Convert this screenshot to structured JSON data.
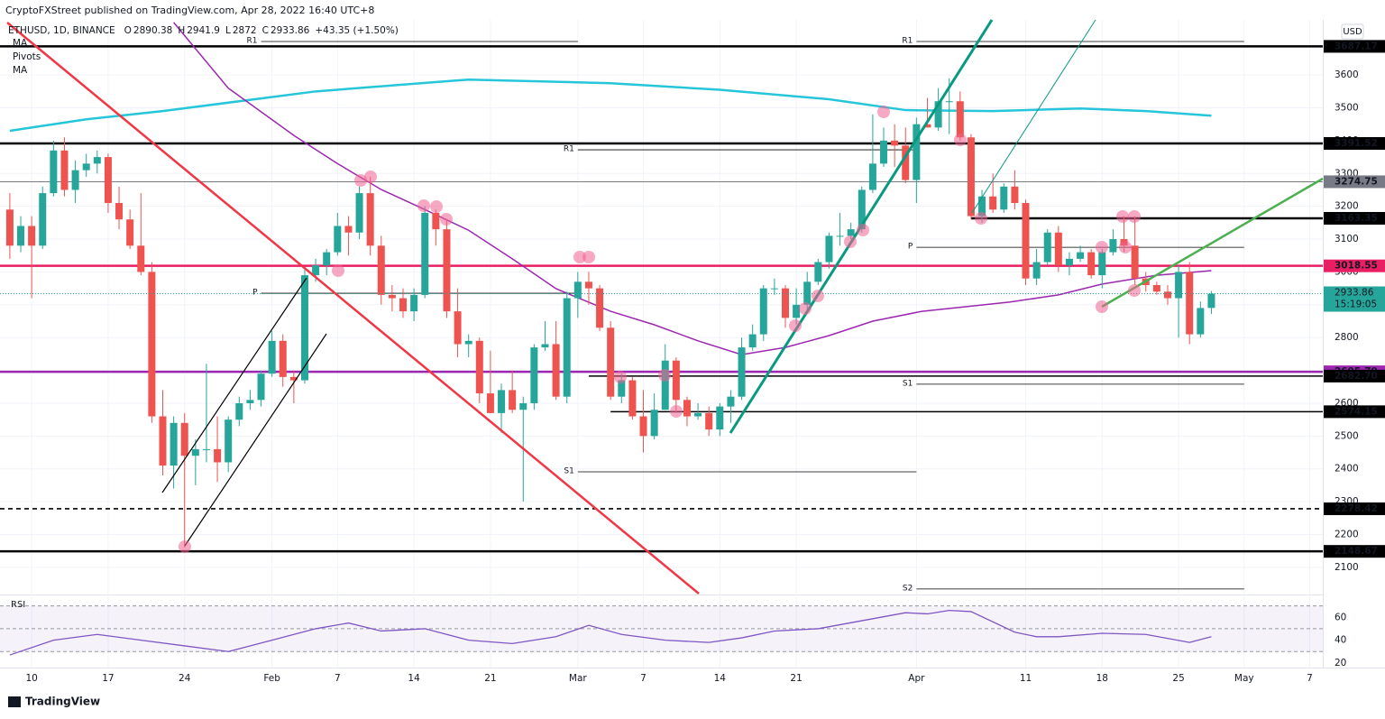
{
  "header": {
    "publisher": "CryptoFXStreet published on TradingView.com, Apr 28, 2022 16:40 UTC+8",
    "symbol": "ETHUSD, 1D, BINANCE",
    "o": "O",
    "h": "H",
    "l": "L",
    "c": "C",
    "change": "+43.35 (+1.50%)",
    "indicators": [
      "MA",
      "Pivots",
      "MA"
    ],
    "currency": "USD",
    "rsi": "RSI",
    "countdown": "15:19:05",
    "footer": "TradingView"
  },
  "chart_data": {
    "type": "candlestick",
    "xlim": [
      -0.9,
      120.2
    ],
    "ylim": [
      2020,
      3768
    ],
    "grid": true,
    "xticks": [
      {
        "value": 2,
        "label": "10"
      },
      {
        "value": 9,
        "label": "17"
      },
      {
        "value": 16,
        "label": "24"
      },
      {
        "value": 24,
        "label": "Feb"
      },
      {
        "value": 30,
        "label": "7"
      },
      {
        "value": 37,
        "label": "14"
      },
      {
        "value": 44,
        "label": "21"
      },
      {
        "value": 52,
        "label": "Mar"
      },
      {
        "value": 58,
        "label": "7"
      },
      {
        "value": 65,
        "label": "14"
      },
      {
        "value": 72,
        "label": "21"
      },
      {
        "value": 83,
        "label": "Apr"
      },
      {
        "value": 93,
        "label": "11"
      },
      {
        "value": 100,
        "label": "18"
      },
      {
        "value": 107,
        "label": "25"
      },
      {
        "value": 113,
        "label": "May"
      },
      {
        "value": 119,
        "label": "7"
      }
    ],
    "yticks": [
      2100,
      2200,
      2300,
      2400,
      2500,
      2600,
      2700,
      2800,
      2900,
      3000,
      3100,
      3200,
      3300,
      3400,
      3500,
      3600
    ],
    "candles": {
      "o": [
        3190,
        3080,
        3140,
        3080,
        3240,
        3370,
        3250,
        3310,
        3330,
        3350,
        3210,
        3160,
        3080,
        3000,
        2560,
        2410,
        2540,
        2440,
        2460,
        2460,
        2420,
        2550,
        2600,
        2610,
        2690,
        2790,
        2680,
        2670,
        2990,
        3020,
        3060,
        3140,
        3120,
        3240,
        3080,
        2930,
        2920,
        2880,
        2930,
        3180,
        3130,
        2880,
        2780,
        2790,
        2630,
        2570,
        2640,
        2580,
        2600,
        2770,
        2780,
        2620,
        2920,
        2970,
        2950,
        2830,
        2620,
        2670,
        2560,
        2500,
        2580,
        2730,
        2610,
        2560,
        2570,
        2520,
        2590,
        2620,
        2770,
        2810,
        2950,
        2950,
        2860,
        2900,
        2970,
        3030,
        3110,
        3110,
        3130,
        3250,
        3330,
        3400,
        3385,
        3280,
        3450,
        3440,
        3520,
        3520,
        3410,
        3170,
        3230,
        3190,
        3260,
        3210,
        2980,
        3030,
        3120,
        3020,
        3040,
        3060,
        2990,
        3060,
        3100,
        3080,
        2980,
        2960,
        2940,
        2920,
        3000,
        2810,
        2890.38
      ],
      "h": [
        3240,
        3170,
        3170,
        3260,
        3400,
        3410,
        3340,
        3360,
        3370,
        3360,
        3260,
        3190,
        3240,
        3030,
        2640,
        2560,
        2570,
        2490,
        2720,
        2560,
        2560,
        2620,
        2640,
        2700,
        2820,
        2810,
        2700,
        3010,
        3040,
        3070,
        3180,
        3170,
        3260,
        3290,
        3110,
        2960,
        2950,
        2950,
        3200,
        3190,
        3160,
        2950,
        2810,
        2800,
        2760,
        2660,
        2700,
        2620,
        2780,
        2850,
        2850,
        2940,
        3000,
        3000,
        2960,
        2850,
        2690,
        2680,
        2640,
        2630,
        2780,
        2740,
        2620,
        2600,
        2590,
        2600,
        2640,
        2800,
        2840,
        2960,
        2980,
        2960,
        2950,
        3000,
        3040,
        3120,
        3180,
        3150,
        3260,
        3480,
        3440,
        3450,
        3440,
        3470,
        3530,
        3560,
        3590,
        3550,
        3420,
        3250,
        3300,
        3270,
        3310,
        3220,
        3070,
        3130,
        3140,
        3060,
        3080,
        3070,
        3070,
        3130,
        3170,
        3170,
        3000,
        2970,
        2960,
        3020,
        3030,
        2910,
        2941.9
      ],
      "l": [
        3040,
        3060,
        2920,
        3070,
        3230,
        3230,
        3210,
        3290,
        3300,
        3180,
        3130,
        3070,
        2990,
        2540,
        2380,
        2340,
        2160,
        2350,
        2420,
        2360,
        2390,
        2530,
        2580,
        2590,
        2680,
        2650,
        2600,
        2660,
        2970,
        2990,
        3050,
        3050,
        3100,
        3050,
        2900,
        2880,
        2860,
        2850,
        2920,
        3080,
        2860,
        2740,
        2740,
        2600,
        2570,
        2510,
        2570,
        2300,
        2580,
        2760,
        2610,
        2600,
        2860,
        2900,
        2820,
        2610,
        2600,
        2550,
        2450,
        2490,
        2580,
        2570,
        2530,
        2550,
        2500,
        2500,
        2540,
        2610,
        2760,
        2790,
        2930,
        2830,
        2840,
        2880,
        2960,
        3010,
        3080,
        3100,
        3120,
        3240,
        3320,
        3320,
        3270,
        3210,
        3440,
        3430,
        3420,
        3400,
        3160,
        3150,
        3180,
        3180,
        3190,
        2960,
        2960,
        3020,
        3000,
        2990,
        3030,
        2980,
        2950,
        3050,
        3060,
        2960,
        2940,
        2930,
        2900,
        2800,
        2780,
        2800,
        2872.0
      ],
      "c": [
        3080,
        3140,
        3080,
        3240,
        3370,
        3250,
        3310,
        3330,
        3350,
        3210,
        3160,
        3080,
        3000,
        2560,
        2410,
        2540,
        2440,
        2460,
        2460,
        2420,
        2550,
        2600,
        2610,
        2690,
        2790,
        2680,
        2670,
        2990,
        3020,
        3060,
        3140,
        3120,
        3240,
        3080,
        2930,
        2920,
        2880,
        2930,
        3180,
        3130,
        2880,
        2780,
        2790,
        2630,
        2570,
        2640,
        2580,
        2600,
        2770,
        2780,
        2620,
        2920,
        2970,
        2950,
        2830,
        2620,
        2670,
        2560,
        2500,
        2580,
        2730,
        2610,
        2560,
        2570,
        2520,
        2590,
        2620,
        2770,
        2810,
        2950,
        2950,
        2860,
        2900,
        2970,
        3030,
        3110,
        3110,
        3130,
        3250,
        3330,
        3400,
        3385,
        3280,
        3450,
        3440,
        3520,
        3520,
        3410,
        3170,
        3230,
        3190,
        3260,
        3210,
        2980,
        3030,
        3120,
        3020,
        3040,
        3060,
        2990,
        3060,
        3100,
        3080,
        2980,
        2960,
        2940,
        2920,
        3000,
        2810,
        2890,
        2933.86
      ]
    },
    "up_color": "#26a69a",
    "down_color": "#ef5350",
    "ma_lines": [
      {
        "color": "#26c6da",
        "x": [
          0,
          7,
          14,
          28,
          42,
          55,
          65,
          75,
          82,
          90,
          98,
          104,
          110
        ],
        "values": [
          3430,
          3465,
          3490,
          3550,
          3586,
          3575,
          3555,
          3526,
          3493,
          3490,
          3498,
          3490,
          3476
        ]
      },
      {
        "color": "#9c27b0",
        "x": [
          15,
          20,
          26,
          30,
          34,
          38,
          42,
          46,
          50,
          55,
          59,
          63,
          67,
          71,
          75,
          79,
          83.5,
          91.5,
          96,
          100,
          105,
          110
        ],
        "values": [
          3760,
          3560,
          3416,
          3330,
          3251,
          3190,
          3127,
          3040,
          2949,
          2880,
          2839,
          2790,
          2748,
          2770,
          2806,
          2850,
          2880,
          2908,
          2930,
          2963,
          2990,
          3004
        ]
      }
    ],
    "levels": [
      {
        "value": 3687.17,
        "color": "#000000",
        "style": "thick"
      },
      {
        "value": 3391.52,
        "color": "#000000",
        "style": "thick"
      },
      {
        "value": 3274.75,
        "color": "#787b86",
        "style": "thin"
      },
      {
        "value": 3163.35,
        "color": "#000000",
        "style": "thick",
        "from": 88
      },
      {
        "value": 3018.55,
        "color": "#e91e63",
        "style": "thick"
      },
      {
        "value": 2695.79,
        "color": "#9c27b0",
        "style": "thick"
      },
      {
        "value": 2682.7,
        "label": "2682.70",
        "color": "#000000",
        "style": "medium",
        "from": 53
      },
      {
        "value": 2574.15,
        "color": "#000000",
        "style": "medium",
        "from": 55
      },
      {
        "value": 2278.42,
        "color": "#000000",
        "style": "dashed"
      },
      {
        "value": 2148.67,
        "color": "#000000",
        "style": "thick"
      }
    ],
    "pivots": [
      {
        "label": "R1",
        "value": 3702,
        "from": 23,
        "to": 52
      },
      {
        "label": "P",
        "value": 2935,
        "from": 23,
        "to": 52
      },
      {
        "label": "R1",
        "value": 3372,
        "from": 52,
        "to": 83
      },
      {
        "label": "S1",
        "value": 2391,
        "from": 52,
        "to": 83
      },
      {
        "label": "R1",
        "value": 3702,
        "from": 83,
        "to": 113
      },
      {
        "label": "P",
        "value": 3075,
        "from": 83,
        "to": 113
      },
      {
        "label": "S1",
        "value": 2658,
        "from": 83,
        "to": 113
      },
      {
        "label": "S2",
        "value": 2034,
        "from": 83,
        "to": 113
      }
    ],
    "rsi": {
      "color": "#7e57c2",
      "ylim": [
        16,
        75.2
      ],
      "yticks": [
        20,
        40,
        60
      ],
      "bands": [
        30,
        50,
        70
      ],
      "x": [
        0,
        4,
        8,
        12,
        16,
        20,
        24,
        28,
        31,
        34,
        38,
        42,
        46,
        50,
        53,
        56,
        60,
        64,
        67,
        70,
        74,
        78,
        82,
        84,
        86,
        88,
        92,
        94,
        96,
        100,
        104,
        108,
        110
      ],
      "values": [
        27,
        40,
        45,
        40,
        35,
        30,
        40,
        50,
        55,
        48,
        50,
        40,
        37,
        43,
        53,
        45,
        40,
        38,
        42,
        48,
        50,
        57,
        64,
        63,
        66,
        65,
        47,
        43,
        43,
        46,
        45,
        38,
        43
      ]
    }
  }
}
